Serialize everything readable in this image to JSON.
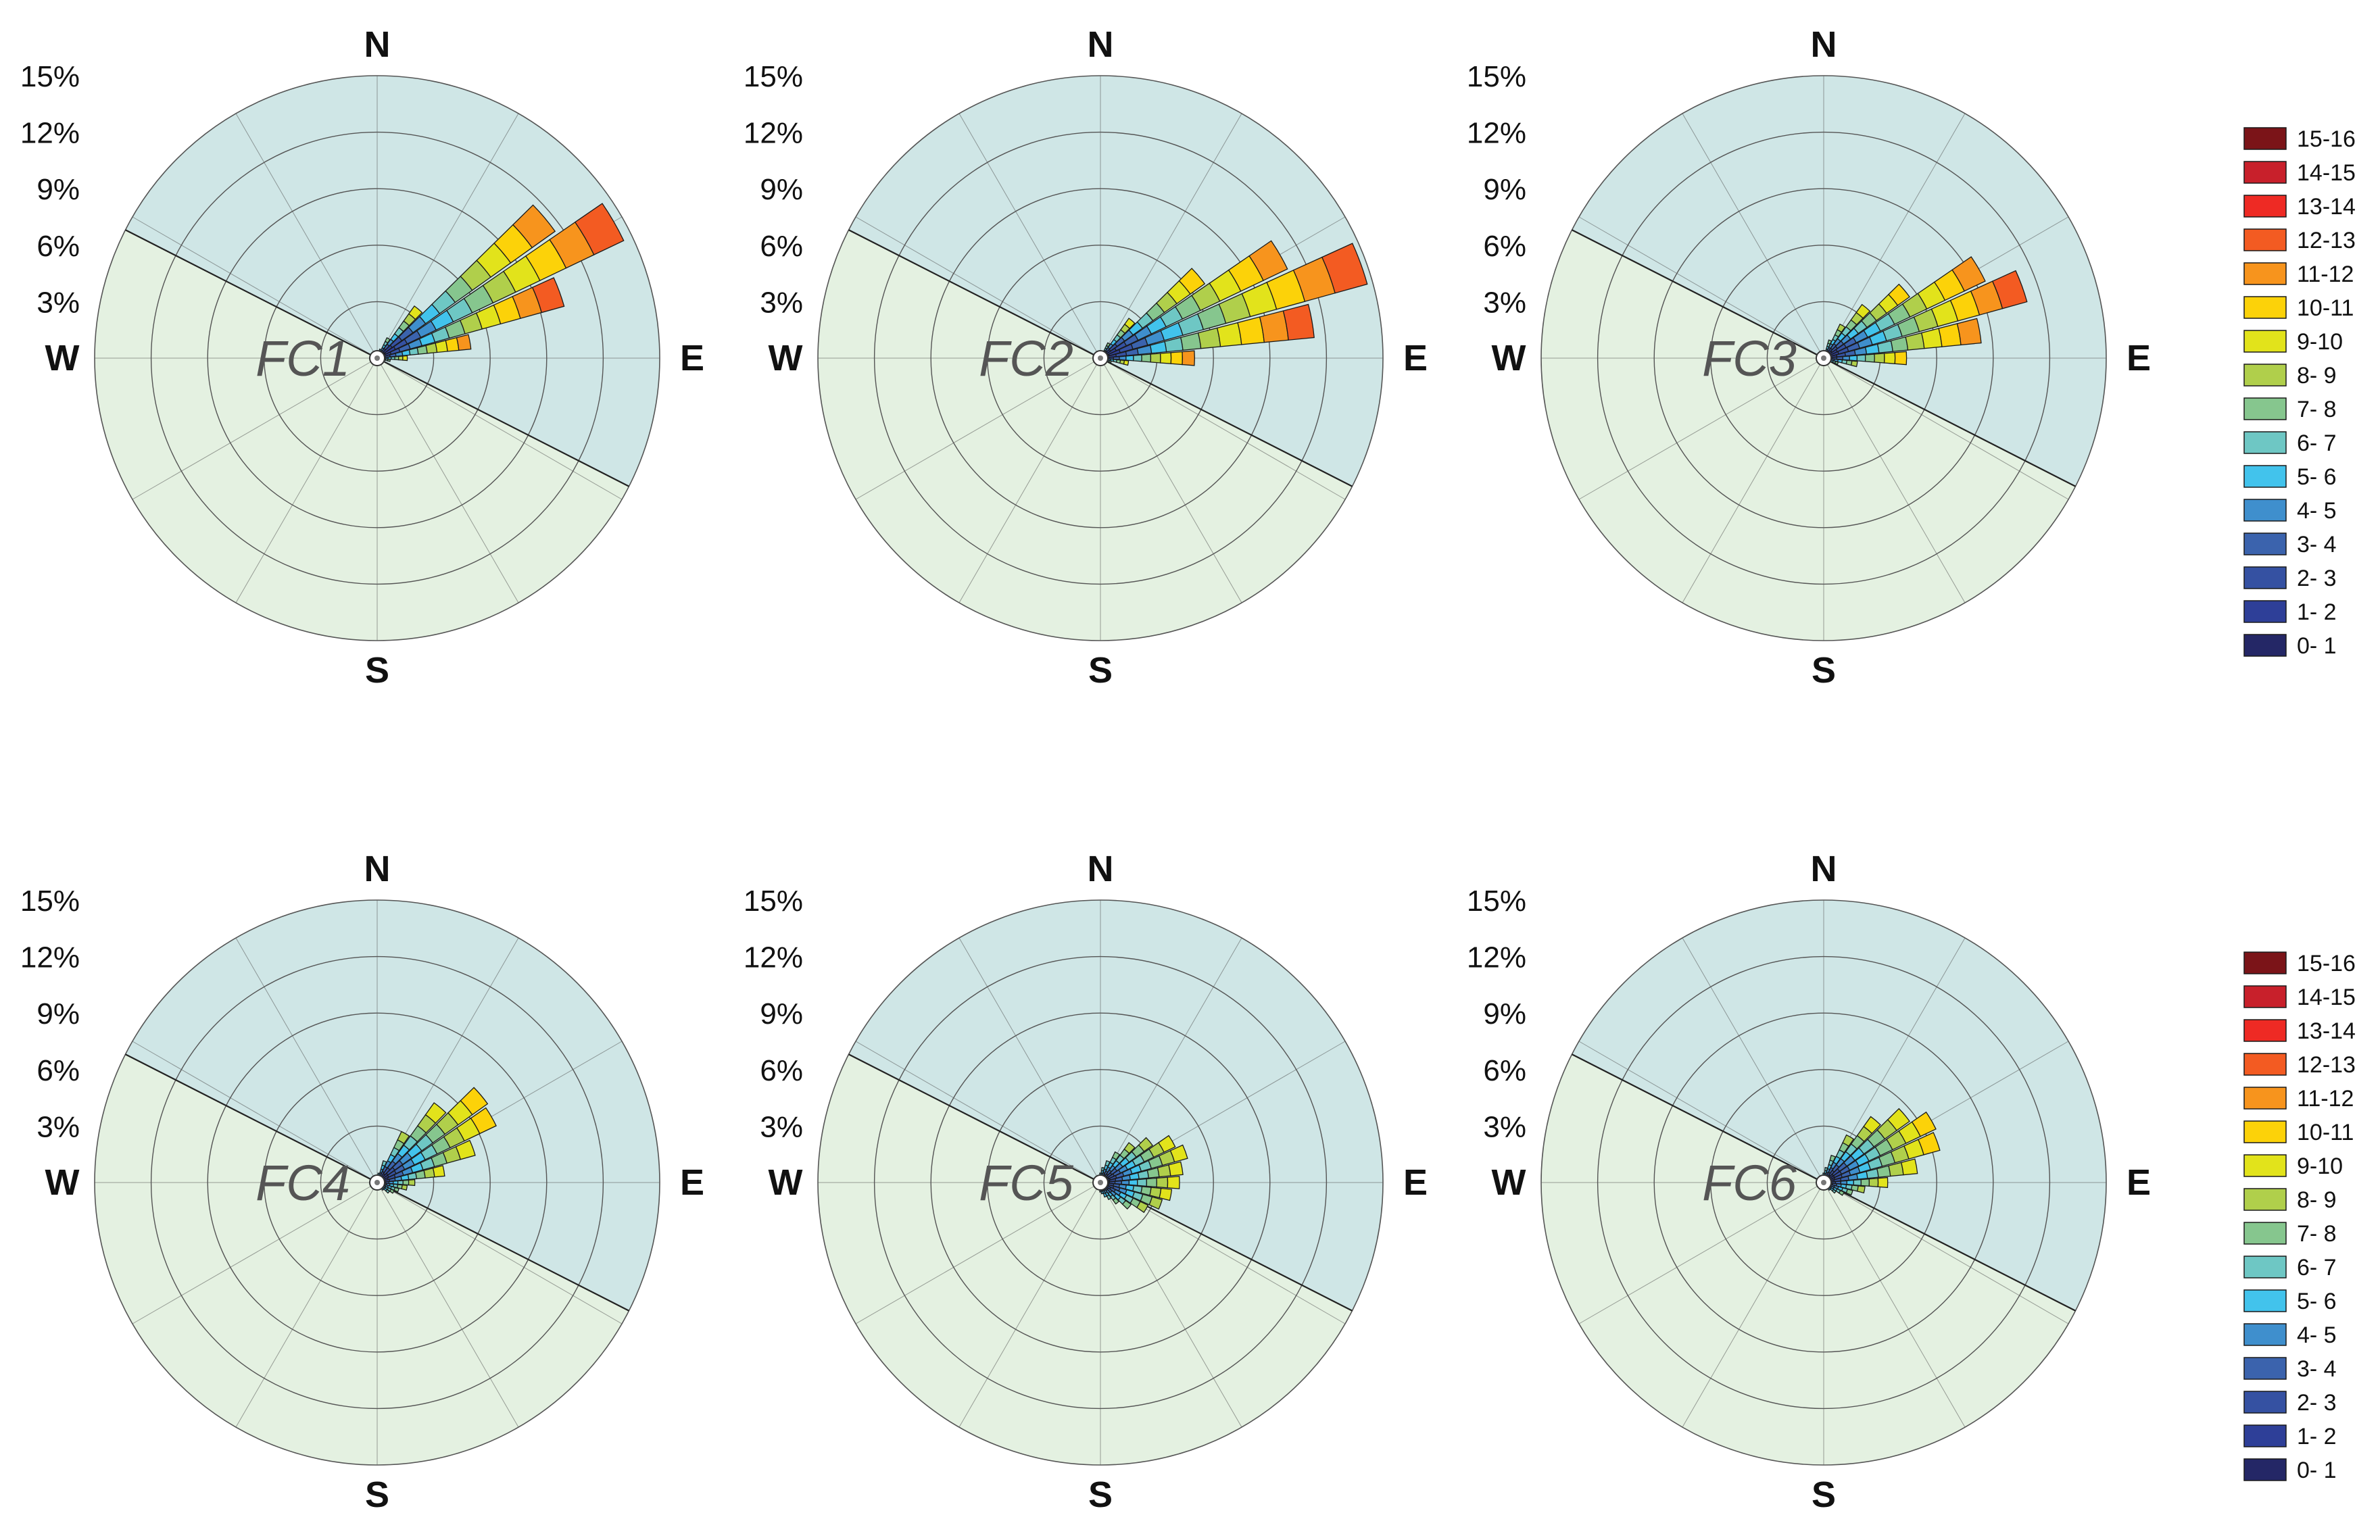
{
  "chart_data": {
    "type": "windrose",
    "directions": [
      "N",
      "E",
      "S",
      "W"
    ],
    "radial_ticks": [
      "3%",
      "6%",
      "9%",
      "12%",
      "15%"
    ],
    "radial_max": 15,
    "sector_count": 36,
    "upper_region_bearings": [
      -63,
      117
    ],
    "colors": {
      "upper_region": "#cfe6e6",
      "lower_region": "#e4f1e1",
      "grid": "#555555",
      "axis_line": "#222222"
    },
    "legend": {
      "bins": [
        "15-16",
        "14-15",
        "13-14",
        "12-13",
        "11-12",
        "10-11",
        "9-10",
        "8- 9",
        "7- 8",
        "6- 7",
        "5- 6",
        "4- 5",
        "3- 4",
        "2- 3",
        "1- 2",
        "0- 1"
      ],
      "colors": [
        "#7b1418",
        "#c8202b",
        "#ee2a24",
        "#f35b22",
        "#f7941d",
        "#fcd209",
        "#e2e31b",
        "#b0cf4b",
        "#86c68e",
        "#6ec7c4",
        "#42c3ec",
        "#3f8fcd",
        "#3b63ad",
        "#3551a2",
        "#2e3f98",
        "#242766"
      ]
    },
    "panels": [
      {
        "title": "FC1",
        "sectors": [
          {
            "bearing": 40,
            "total": 3.4,
            "top_bin": 9
          },
          {
            "bearing": 50,
            "total": 11.6,
            "top_bin": 11
          },
          {
            "bearing": 60,
            "total": 14.5,
            "top_bin": 12
          },
          {
            "bearing": 70,
            "total": 10.3,
            "top_bin": 12
          },
          {
            "bearing": 80,
            "total": 5.0,
            "top_bin": 11
          },
          {
            "bearing": 90,
            "total": 1.6,
            "top_bin": 9
          },
          {
            "bearing": 100,
            "total": 0.7,
            "top_bin": 7
          },
          {
            "bearing": 110,
            "total": 0.4,
            "top_bin": 6
          },
          {
            "bearing": 30,
            "total": 1.2,
            "top_bin": 7
          },
          {
            "bearing": 20,
            "total": 0.5,
            "top_bin": 5
          },
          {
            "bearing": 120,
            "total": 0.3,
            "top_bin": 5
          },
          {
            "bearing": 10,
            "total": 0.3,
            "top_bin": 4
          }
        ]
      },
      {
        "title": "FC2",
        "sectors": [
          {
            "bearing": 40,
            "total": 2.6,
            "top_bin": 9
          },
          {
            "bearing": 50,
            "total": 6.8,
            "top_bin": 10
          },
          {
            "bearing": 60,
            "total": 11.0,
            "top_bin": 11
          },
          {
            "bearing": 70,
            "total": 14.7,
            "top_bin": 12
          },
          {
            "bearing": 80,
            "total": 11.4,
            "top_bin": 12
          },
          {
            "bearing": 90,
            "total": 5.0,
            "top_bin": 11
          },
          {
            "bearing": 100,
            "total": 1.5,
            "top_bin": 9
          },
          {
            "bearing": 110,
            "total": 0.6,
            "top_bin": 7
          },
          {
            "bearing": 30,
            "total": 0.9,
            "top_bin": 7
          },
          {
            "bearing": 20,
            "total": 0.4,
            "top_bin": 5
          },
          {
            "bearing": 120,
            "total": 0.3,
            "top_bin": 5
          },
          {
            "bearing": 130,
            "total": 0.2,
            "top_bin": 4
          }
        ]
      },
      {
        "title": "FC3",
        "sectors": [
          {
            "bearing": 20,
            "total": 1.0,
            "top_bin": 7
          },
          {
            "bearing": 30,
            "total": 2.0,
            "top_bin": 8
          },
          {
            "bearing": 40,
            "total": 3.5,
            "top_bin": 9
          },
          {
            "bearing": 50,
            "total": 5.6,
            "top_bin": 10
          },
          {
            "bearing": 60,
            "total": 9.5,
            "top_bin": 11
          },
          {
            "bearing": 70,
            "total": 11.2,
            "top_bin": 12
          },
          {
            "bearing": 80,
            "total": 8.4,
            "top_bin": 11
          },
          {
            "bearing": 90,
            "total": 4.4,
            "top_bin": 10
          },
          {
            "bearing": 100,
            "total": 1.8,
            "top_bin": 8
          },
          {
            "bearing": 110,
            "total": 0.8,
            "top_bin": 7
          },
          {
            "bearing": 120,
            "total": 0.4,
            "top_bin": 5
          },
          {
            "bearing": 10,
            "total": 0.4,
            "top_bin": 5
          },
          {
            "bearing": 0,
            "total": 0.2,
            "top_bin": 4
          }
        ]
      },
      {
        "title": "FC4",
        "sectors": [
          {
            "bearing": 0,
            "total": 0.3,
            "top_bin": 4
          },
          {
            "bearing": 10,
            "total": 0.5,
            "top_bin": 5
          },
          {
            "bearing": 20,
            "total": 1.2,
            "top_bin": 6
          },
          {
            "bearing": 30,
            "total": 3.0,
            "top_bin": 8
          },
          {
            "bearing": 40,
            "total": 5.2,
            "top_bin": 9
          },
          {
            "bearing": 50,
            "total": 7.2,
            "top_bin": 10
          },
          {
            "bearing": 60,
            "total": 7.0,
            "top_bin": 10
          },
          {
            "bearing": 70,
            "total": 5.4,
            "top_bin": 9
          },
          {
            "bearing": 80,
            "total": 3.6,
            "top_bin": 9
          },
          {
            "bearing": 90,
            "total": 2.0,
            "top_bin": 8
          },
          {
            "bearing": 100,
            "total": 1.6,
            "top_bin": 8
          },
          {
            "bearing": 110,
            "total": 1.2,
            "top_bin": 7
          },
          {
            "bearing": 120,
            "total": 1.0,
            "top_bin": 7
          },
          {
            "bearing": 130,
            "total": 0.8,
            "top_bin": 6
          },
          {
            "bearing": 140,
            "total": 0.5,
            "top_bin": 5
          },
          {
            "bearing": 150,
            "total": 0.3,
            "top_bin": 4
          }
        ]
      },
      {
        "title": "FC5",
        "sectors": [
          {
            "bearing": 350,
            "total": 0.3,
            "top_bin": 4
          },
          {
            "bearing": 0,
            "total": 0.5,
            "top_bin": 5
          },
          {
            "bearing": 10,
            "total": 0.8,
            "top_bin": 6
          },
          {
            "bearing": 20,
            "total": 1.2,
            "top_bin": 6
          },
          {
            "bearing": 30,
            "total": 1.8,
            "top_bin": 7
          },
          {
            "bearing": 40,
            "total": 2.6,
            "top_bin": 8
          },
          {
            "bearing": 50,
            "total": 3.4,
            "top_bin": 8
          },
          {
            "bearing": 60,
            "total": 4.4,
            "top_bin": 9
          },
          {
            "bearing": 70,
            "total": 4.8,
            "top_bin": 9
          },
          {
            "bearing": 80,
            "total": 4.4,
            "top_bin": 9
          },
          {
            "bearing": 90,
            "total": 4.2,
            "top_bin": 9
          },
          {
            "bearing": 100,
            "total": 3.8,
            "top_bin": 9
          },
          {
            "bearing": 110,
            "total": 3.4,
            "top_bin": 8
          },
          {
            "bearing": 120,
            "total": 2.8,
            "top_bin": 8
          },
          {
            "bearing": 130,
            "total": 2.0,
            "top_bin": 7
          },
          {
            "bearing": 140,
            "total": 1.4,
            "top_bin": 7
          },
          {
            "bearing": 150,
            "total": 1.0,
            "top_bin": 6
          },
          {
            "bearing": 160,
            "total": 0.8,
            "top_bin": 5
          },
          {
            "bearing": 170,
            "total": 0.6,
            "top_bin": 5
          },
          {
            "bearing": 180,
            "total": 0.5,
            "top_bin": 4
          },
          {
            "bearing": 190,
            "total": 0.4,
            "top_bin": 4
          },
          {
            "bearing": 200,
            "total": 0.3,
            "top_bin": 3
          },
          {
            "bearing": 340,
            "total": 0.2,
            "top_bin": 3
          }
        ]
      },
      {
        "title": "FC6",
        "sectors": [
          {
            "bearing": 350,
            "total": 0.3,
            "top_bin": 4
          },
          {
            "bearing": 0,
            "total": 0.5,
            "top_bin": 5
          },
          {
            "bearing": 10,
            "total": 0.8,
            "top_bin": 6
          },
          {
            "bearing": 20,
            "total": 1.5,
            "top_bin": 7
          },
          {
            "bearing": 30,
            "total": 2.8,
            "top_bin": 8
          },
          {
            "bearing": 40,
            "total": 4.3,
            "top_bin": 9
          },
          {
            "bearing": 50,
            "total": 5.6,
            "top_bin": 9
          },
          {
            "bearing": 60,
            "total": 6.6,
            "top_bin": 10
          },
          {
            "bearing": 70,
            "total": 6.4,
            "top_bin": 10
          },
          {
            "bearing": 80,
            "total": 5.0,
            "top_bin": 9
          },
          {
            "bearing": 90,
            "total": 3.4,
            "top_bin": 9
          },
          {
            "bearing": 100,
            "total": 2.2,
            "top_bin": 8
          },
          {
            "bearing": 110,
            "total": 1.6,
            "top_bin": 7
          },
          {
            "bearing": 120,
            "total": 1.2,
            "top_bin": 7
          },
          {
            "bearing": 130,
            "total": 0.8,
            "top_bin": 6
          },
          {
            "bearing": 140,
            "total": 0.5,
            "top_bin": 5
          },
          {
            "bearing": 150,
            "total": 0.3,
            "top_bin": 4
          }
        ]
      }
    ]
  }
}
